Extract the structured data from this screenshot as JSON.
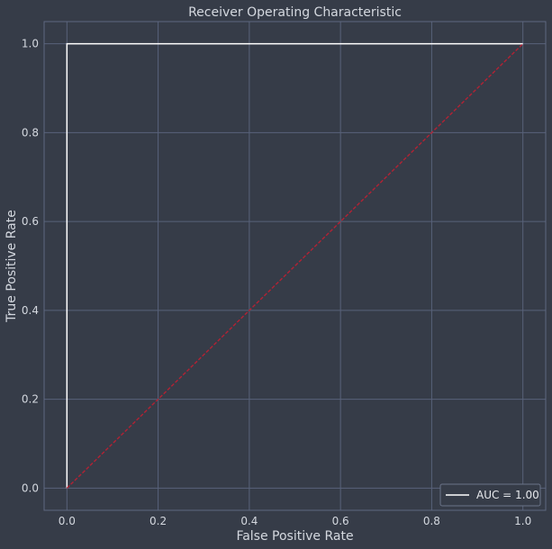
{
  "chart_data": {
    "type": "line",
    "title": "Receiver Operating Characteristic",
    "xlabel": "False Positive Rate",
    "ylabel": "True Positive Rate",
    "xlim": [
      -0.05,
      1.05
    ],
    "ylim": [
      -0.05,
      1.05
    ],
    "x_ticks": [
      "0.0",
      "0.2",
      "0.4",
      "0.6",
      "0.8",
      "1.0"
    ],
    "y_ticks": [
      "0.0",
      "0.2",
      "0.4",
      "0.6",
      "0.8",
      "1.0"
    ],
    "grid": true,
    "legend_position": "bottom-right",
    "series": [
      {
        "name": "AUC = 1.00",
        "color": "#ffffff",
        "style": "solid",
        "x": [
          0.0,
          0.0,
          1.0
        ],
        "y": [
          0.0,
          1.0,
          1.0
        ]
      },
      {
        "color": "#b22234",
        "style": "dashed",
        "x": [
          0.0,
          1.0
        ],
        "y": [
          0.0,
          1.0
        ]
      }
    ],
    "colors": {
      "background": "#363c48",
      "grid": "#58627a",
      "text": "#d4d8df"
    }
  }
}
